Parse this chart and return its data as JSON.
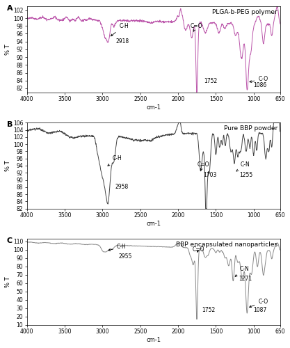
{
  "title_A": "PLGA-b-PEG polymer",
  "title_B": "Pure BBP powder",
  "title_C": "BBP encapsulated nanoparticles",
  "xlabel": "cm-1",
  "ylabel": "% T",
  "color_A": "#bb55aa",
  "color_B": "#444444",
  "color_C": "#888888",
  "xlim": [
    4000,
    650
  ],
  "ylim_A": [
    81,
    103
  ],
  "ylim_B": [
    82,
    106
  ],
  "ylim_C": [
    10,
    113
  ],
  "yticks_A": [
    82,
    84,
    86,
    88,
    90,
    92,
    94,
    96,
    98,
    100,
    102
  ],
  "yticks_B": [
    82,
    84,
    86,
    88,
    90,
    92,
    94,
    96,
    98,
    100,
    102,
    104,
    106
  ],
  "yticks_C": [
    10,
    20,
    30,
    40,
    50,
    60,
    70,
    80,
    90,
    100,
    110
  ],
  "xticks": [
    4000,
    3500,
    3000,
    2500,
    2000,
    1500,
    1000,
    650
  ],
  "background_color": "#ffffff"
}
